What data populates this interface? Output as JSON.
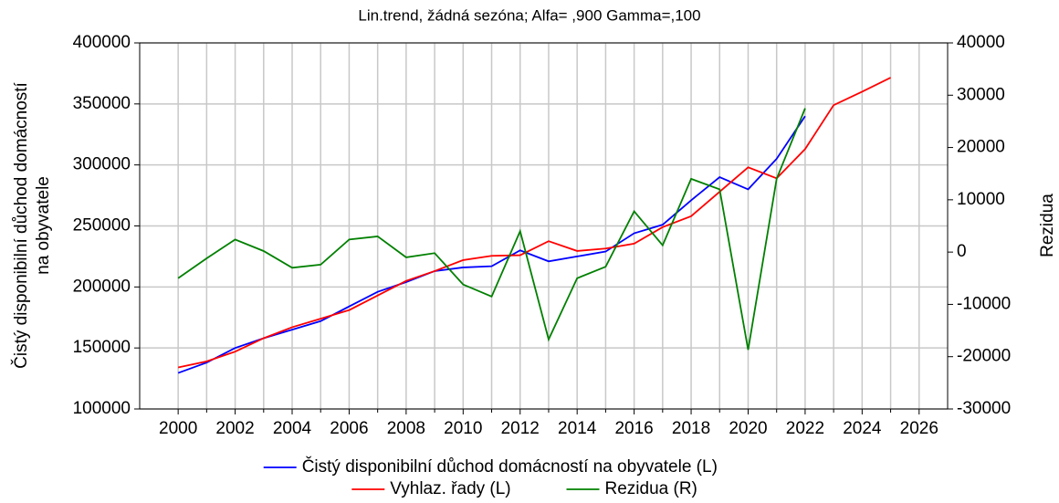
{
  "chart_data": {
    "type": "line",
    "title": "Lin.trend, žádná sezóna; Alfa=  ,900 Gamma=,100",
    "ylabel": [
      "Čistý disponibilní důchod domácností",
      "na obyvatele"
    ],
    "y2label": "Rezidua",
    "x": [
      2000,
      2001,
      2002,
      2003,
      2004,
      2005,
      2006,
      2007,
      2008,
      2009,
      2010,
      2011,
      2012,
      2013,
      2014,
      2015,
      2016,
      2017,
      2018,
      2019,
      2020,
      2021,
      2022,
      2023,
      2024,
      2025
    ],
    "series": [
      {
        "name": "Čistý disponibilní důchod domácností na obyvatele (L)",
        "color": "#0000ff",
        "values": [
          129500,
          138000,
          150000,
          158000,
          165000,
          172000,
          184000,
          196000,
          204000,
          213000,
          216000,
          217000,
          230000,
          221000,
          225000,
          229000,
          244000,
          251000,
          271000,
          290000,
          280000,
          305000,
          340000,
          null,
          null,
          null
        ]
      },
      {
        "name": "Vyhlaz. řady (L)",
        "color": "#ff0000",
        "values": [
          134000,
          139000,
          147000,
          158000,
          167000,
          174000,
          181000,
          193000,
          205000,
          213000,
          222000,
          225500,
          226000,
          237500,
          229500,
          231500,
          235500,
          249000,
          258000,
          278000,
          298000,
          289000,
          313000,
          349000,
          360000,
          371500
        ]
      },
      {
        "name": "Rezidua (R)",
        "color": "#008000",
        "axis": "y2",
        "values": [
          -5000,
          -1200,
          2400,
          200,
          -3000,
          -2400,
          2400,
          3000,
          -1000,
          -200,
          -6200,
          -8500,
          4000,
          -16700,
          -5000,
          -2800,
          7800,
          1300,
          14000,
          12000,
          -18700,
          14000,
          27500,
          null,
          null,
          null
        ]
      }
    ],
    "xlim": [
      1998.65,
      2027
    ],
    "xticks": [
      2000,
      2002,
      2004,
      2006,
      2008,
      2010,
      2012,
      2014,
      2016,
      2018,
      2020,
      2022,
      2024,
      2026
    ],
    "x_minor_ticks": [
      2001,
      2003,
      2005,
      2007,
      2009,
      2011,
      2013,
      2015,
      2017,
      2019,
      2021,
      2023,
      2025
    ],
    "ylim": [
      100000,
      400000
    ],
    "yticks": [
      100000,
      150000,
      200000,
      250000,
      300000,
      350000,
      400000
    ],
    "y2lim": [
      -30000,
      40000
    ],
    "y2ticks": [
      -30000,
      -20000,
      -10000,
      0,
      10000,
      20000,
      30000,
      40000
    ],
    "grid": true
  }
}
